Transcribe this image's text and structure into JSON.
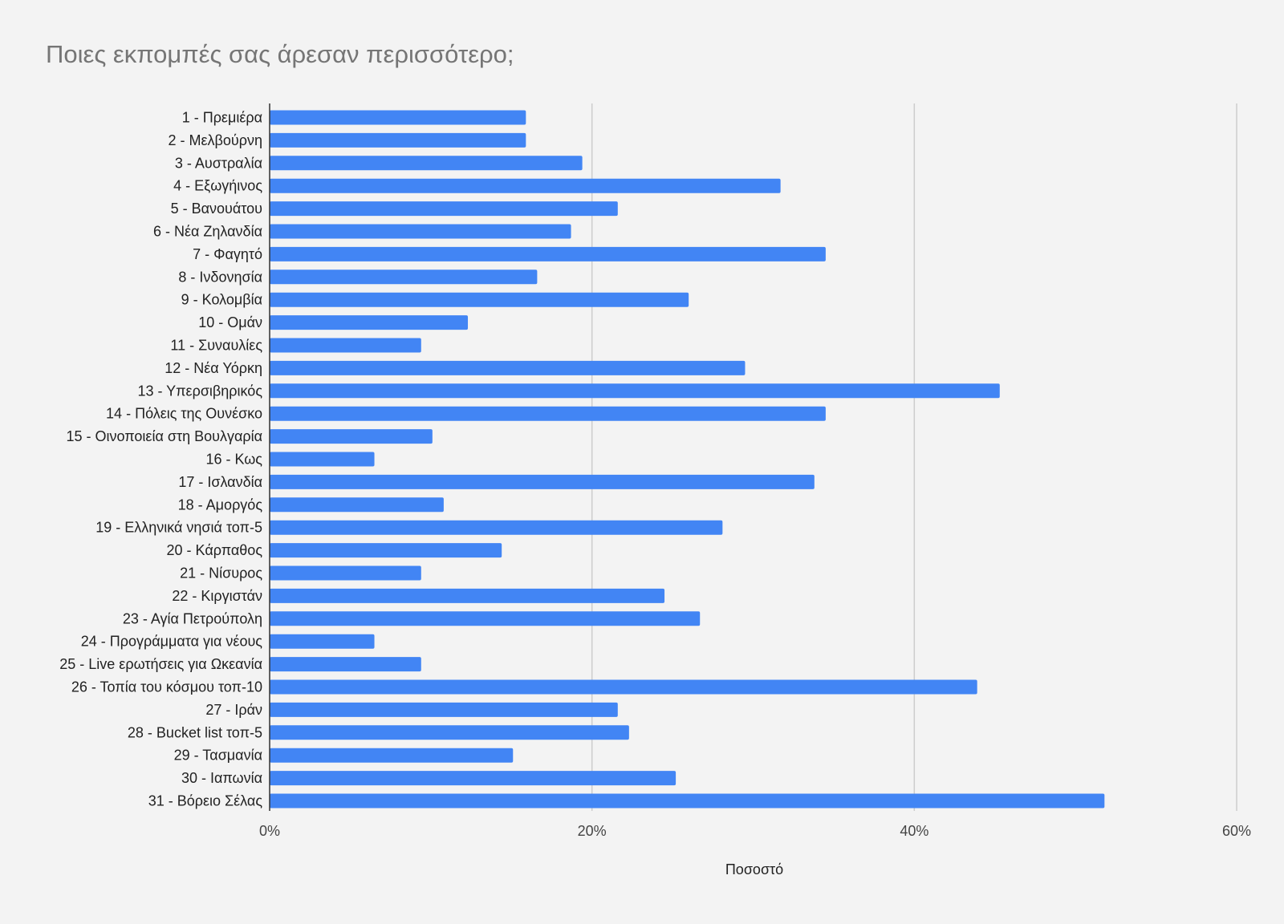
{
  "chart_data": {
    "type": "bar",
    "orientation": "horizontal",
    "title": "Ποιες εκπομπές σας άρεσαν περισσότερο;",
    "xlabel": "Ποσοστό",
    "ylabel": "",
    "xlim": [
      0,
      60
    ],
    "ticks": [
      0,
      20,
      40,
      60
    ],
    "tick_labels": [
      "0%",
      "20%",
      "40%",
      "60%"
    ],
    "grid": true,
    "legend": "none",
    "bar_color": "#4285f4",
    "grid_color": "#cccccc",
    "categories": [
      "1 - Πρεμιέρα",
      "2 - Μελβούρνη",
      "3 - Αυστραλία",
      "4 - Εξωγήινος",
      "5 - Βανουάτου",
      "6 - Νέα Ζηλανδία",
      "7 - Φαγητό",
      "8 - Ινδονησία",
      "9 - Κολομβία",
      "10 - Ομάν",
      "11 - Συναυλίες",
      "12 - Νέα Υόρκη",
      "13 - Υπερσιβηρικός",
      "14 - Πόλεις της Ουνέσκο",
      "15 - Οινοποιεία στη Βουλγαρία",
      "16 - Κως",
      "17 - Ισλανδία",
      "18 - Αμοργός",
      "19 - Ελληνικά νησιά τοπ-5",
      "20 - Κάρπαθος",
      "21 - Νίσυρος",
      "22 - Κιργιστάν",
      "23 - Αγία Πετρούπολη",
      "24 - Προγράμματα για νέους",
      "25 - Live ερωτήσεις για Ωκεανία",
      "26 - Τοπία του κόσμου τοπ-10",
      "27 - Ιράν",
      "28 - Bucket list τοπ-5",
      "29 - Τασμανία",
      "30 - Ιαπωνία",
      "31 - Βόρειο Σέλας"
    ],
    "values": [
      15.9,
      15.9,
      19.4,
      31.7,
      21.6,
      18.7,
      34.5,
      16.6,
      26.0,
      12.3,
      9.4,
      29.5,
      45.3,
      34.5,
      10.1,
      6.5,
      33.8,
      10.8,
      28.1,
      14.4,
      9.4,
      24.5,
      26.7,
      6.5,
      9.4,
      43.9,
      21.6,
      22.3,
      15.1,
      25.2,
      51.8
    ]
  }
}
